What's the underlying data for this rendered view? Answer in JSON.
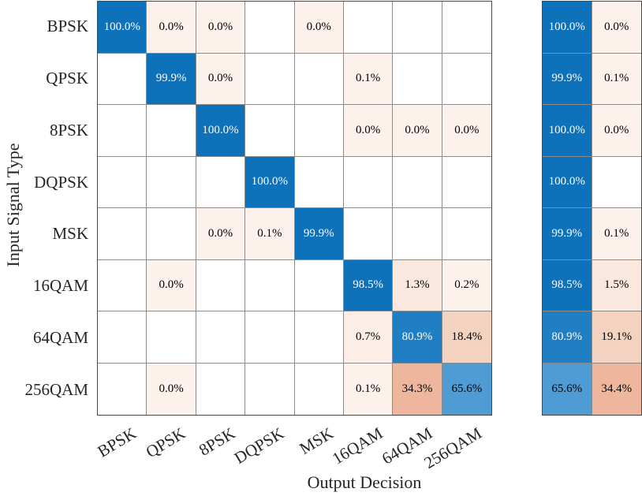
{
  "chart_data": {
    "type": "heatmap",
    "subtype": "confusion-matrix",
    "title": "",
    "xlabel": "Output Decision",
    "ylabel": "Input Signal Type",
    "classes": [
      "BPSK",
      "QPSK",
      "8PSK",
      "DQPSK",
      "MSK",
      "16QAM",
      "64QAM",
      "256QAM"
    ],
    "cells": [
      [
        "100.0%",
        "0.0%",
        "0.0%",
        "",
        "0.0%",
        "",
        "",
        ""
      ],
      [
        "",
        "99.9%",
        "0.0%",
        "",
        "",
        "0.1%",
        "",
        ""
      ],
      [
        "",
        "",
        "100.0%",
        "",
        "",
        "0.0%",
        "0.0%",
        "0.0%"
      ],
      [
        "",
        "",
        "",
        "100.0%",
        "",
        "",
        "",
        ""
      ],
      [
        "",
        "",
        "0.0%",
        "0.1%",
        "99.9%",
        "",
        "",
        ""
      ],
      [
        "",
        "0.0%",
        "",
        "",
        "",
        "98.5%",
        "1.3%",
        "0.2%"
      ],
      [
        "",
        "",
        "",
        "",
        "",
        "0.7%",
        "80.9%",
        "18.4%"
      ],
      [
        "",
        "0.0%",
        "",
        "",
        "",
        "0.1%",
        "34.3%",
        "65.6%"
      ]
    ],
    "row_summary": [
      [
        "100.0%",
        "0.0%"
      ],
      [
        "99.9%",
        "0.1%"
      ],
      [
        "100.0%",
        "0.0%"
      ],
      [
        "100.0%",
        ""
      ],
      [
        "99.9%",
        "0.1%"
      ],
      [
        "98.5%",
        "1.5%"
      ],
      [
        "80.9%",
        "19.1%"
      ],
      [
        "65.6%",
        "34.4%"
      ]
    ],
    "palette": {
      "diagonal_stops": [
        {
          "min": 98,
          "bg": "#0d72b9",
          "fg": "#ffffff"
        },
        {
          "min": 75,
          "bg": "#1f7fc2",
          "fg": "#ffffff"
        },
        {
          "min": -1,
          "bg": "#4f9bd3",
          "fg": "#000000"
        }
      ],
      "off_diagonal_stops": [
        {
          "min": 25,
          "bg": "#eeb69d",
          "fg": "#000000"
        },
        {
          "min": 10,
          "bg": "#f3d3c0",
          "fg": "#000000"
        },
        {
          "min": 1,
          "bg": "#fae8de",
          "fg": "#000000"
        },
        {
          "min": 0.5,
          "bg": "#fceee7",
          "fg": "#000000"
        },
        {
          "min": -1,
          "bg": "#fdf1ec",
          "fg": "#000000"
        }
      ],
      "empty_bg": "#ffffff",
      "grid_line": "#8c8c8c",
      "outer_border": "#474747",
      "axis_label_color": "#262626",
      "value_text": "#000000"
    }
  }
}
